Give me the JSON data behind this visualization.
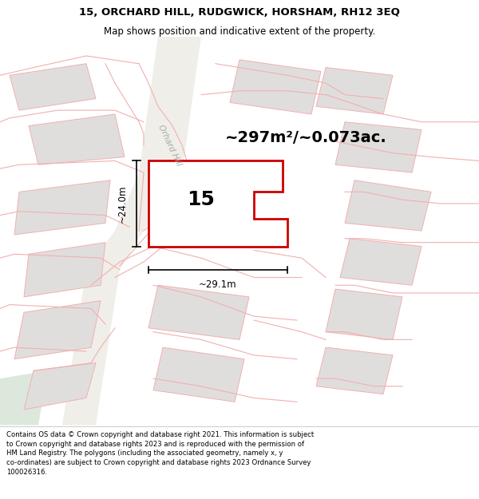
{
  "title_line1": "15, ORCHARD HILL, RUDGWICK, HORSHAM, RH12 3EQ",
  "title_line2": "Map shows position and indicative extent of the property.",
  "footer_wrapped": "Contains OS data © Crown copyright and database right 2021. This information is subject\nto Crown copyright and database rights 2023 and is reproduced with the permission of\nHM Land Registry. The polygons (including the associated geometry, namely x, y\nco-ordinates) are subject to Crown copyright and database rights 2023 Ordnance Survey\n100026316.",
  "area_label": "~297m²/~0.073ac.",
  "plot_number": "15",
  "dim_width": "~29.1m",
  "dim_height": "~24.0m",
  "road_label": "Orhard Hill",
  "map_bg": "#f8f8f6",
  "plot_fill": "#f0eeeb",
  "plot_edge": "#cc0000",
  "neighbor_fill": "#e0dedd",
  "pink_line": "#f0b0b0",
  "road_fill": "#f0eee8",
  "greenish_corner": "#dde8dd",
  "title_fontsize": 9.5,
  "subtitle_fontsize": 8.5,
  "footer_fontsize": 6.1,
  "area_fontsize": 14,
  "number_fontsize": 18,
  "dim_fontsize": 8.5,
  "road_label_fontsize": 7.5,
  "road_label_color": "#aaaaaa",
  "road_label_rotation": -65
}
